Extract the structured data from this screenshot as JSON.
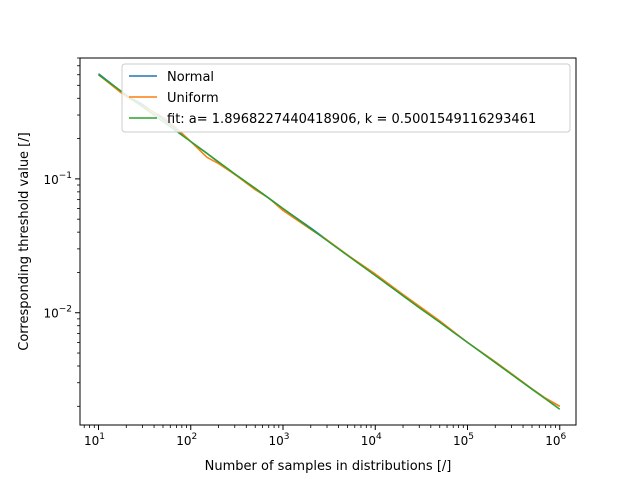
{
  "chart_data": {
    "type": "line",
    "xscale": "log",
    "yscale": "log",
    "xlabel": "Number of samples in distributions [/]",
    "ylabel": "Corresponding threshold value [/]",
    "xlim": [
      6.3,
      1500000.0
    ],
    "ylim": [
      0.00145,
      0.8
    ],
    "grid": false,
    "legend_position": "top-right",
    "x_ticks": [
      {
        "value": 10,
        "base": "10",
        "exp": "1"
      },
      {
        "value": 100,
        "base": "10",
        "exp": "2"
      },
      {
        "value": 1000,
        "base": "10",
        "exp": "3"
      },
      {
        "value": 10000,
        "base": "10",
        "exp": "4"
      },
      {
        "value": 100000,
        "base": "10",
        "exp": "5"
      },
      {
        "value": 1000000,
        "base": "10",
        "exp": "6"
      }
    ],
    "y_ticks": [
      {
        "value": 0.01,
        "base": "10",
        "exp": "−2"
      },
      {
        "value": 0.1,
        "base": "10",
        "exp": "−1"
      }
    ],
    "series": [
      {
        "name": "Normal",
        "color": "#1f77b4",
        "x": [
          10,
          20,
          30,
          50,
          70,
          100,
          150,
          200,
          300,
          500,
          700,
          1000,
          2000,
          3000,
          5000,
          10000,
          20000,
          30000,
          50000,
          100000,
          200000,
          300000,
          500000,
          700000,
          1000000
        ],
        "y": [
          0.61,
          0.42,
          0.36,
          0.28,
          0.235,
          0.19,
          0.155,
          0.133,
          0.108,
          0.085,
          0.072,
          0.06,
          0.043,
          0.035,
          0.027,
          0.019,
          0.0134,
          0.011,
          0.0085,
          0.006,
          0.0043,
          0.0035,
          0.0027,
          0.0023,
          0.002
        ]
      },
      {
        "name": "Uniform",
        "color": "#ff7f0e",
        "x": [
          10,
          20,
          30,
          50,
          70,
          100,
          150,
          200,
          300,
          500,
          700,
          1000,
          2000,
          3000,
          5000,
          10000,
          20000,
          30000,
          50000,
          100000,
          200000,
          300000,
          500000,
          700000,
          1000000
        ],
        "y": [
          0.6,
          0.41,
          0.35,
          0.29,
          0.24,
          0.19,
          0.145,
          0.13,
          0.108,
          0.083,
          0.072,
          0.058,
          0.042,
          0.035,
          0.027,
          0.0195,
          0.0137,
          0.0112,
          0.0087,
          0.006,
          0.0043,
          0.0035,
          0.0027,
          0.0023,
          0.002
        ]
      },
      {
        "name": "fit: a= 1.8968227440418906, k = 0.5001549116293461",
        "color": "#2ca02c",
        "x": [
          10,
          20,
          30,
          50,
          70,
          100,
          150,
          200,
          300,
          500,
          700,
          1000,
          2000,
          3000,
          5000,
          7000,
          10000,
          20000,
          30000,
          50000,
          70000,
          100000,
          200000,
          300000,
          500000,
          700000,
          1000000
        ],
        "y": [
          0.599,
          0.424,
          0.346,
          0.268,
          0.227,
          0.19,
          0.155,
          0.134,
          0.109,
          0.085,
          0.0717,
          0.06,
          0.0424,
          0.0346,
          0.0268,
          0.0227,
          0.019,
          0.0134,
          0.0109,
          0.0085,
          0.00717,
          0.006,
          0.00424,
          0.00346,
          0.00268,
          0.00227,
          0.0019
        ]
      }
    ]
  }
}
